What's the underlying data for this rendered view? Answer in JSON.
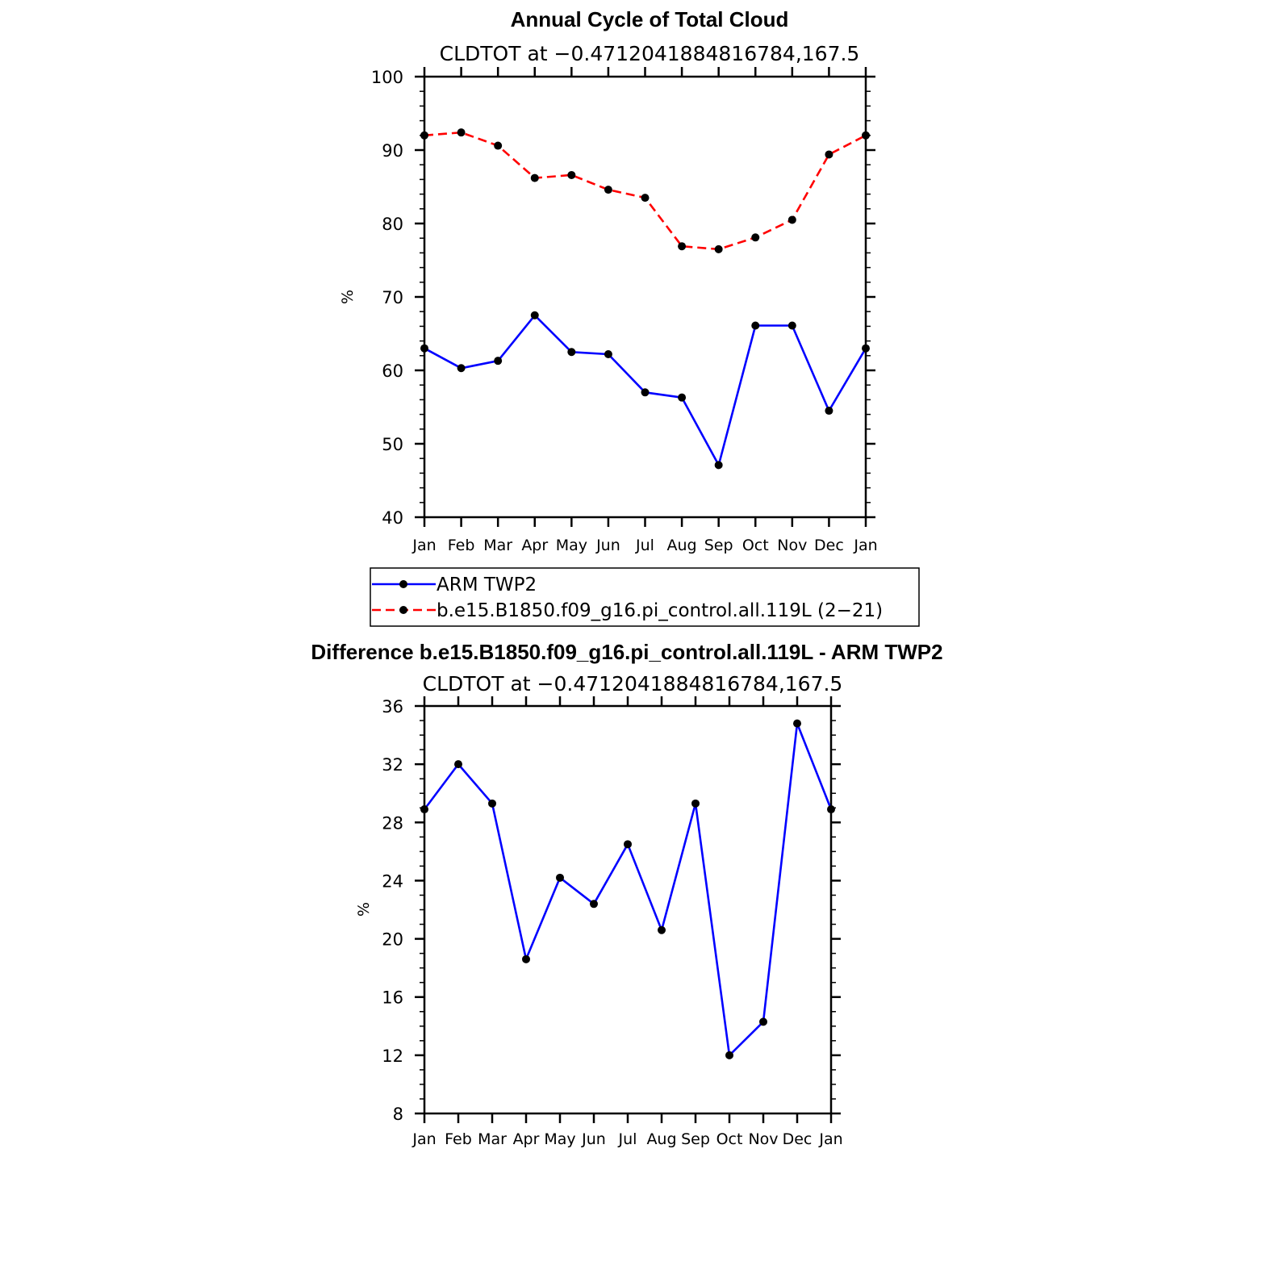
{
  "chart_data": [
    {
      "type": "line",
      "title": "Annual Cycle of Total Cloud",
      "subtitle": "CLDTOT at −0.4712041884816784,167.5",
      "xlabel": "",
      "ylabel": "%",
      "categories": [
        "Jan",
        "Feb",
        "Mar",
        "Apr",
        "May",
        "Jun",
        "Jul",
        "Aug",
        "Sep",
        "Oct",
        "Nov",
        "Dec",
        "Jan"
      ],
      "ylim": [
        40,
        100
      ],
      "yticks": [
        40,
        50,
        60,
        70,
        80,
        90,
        100
      ],
      "yticks_labels": [
        "40",
        "50",
        "60",
        "70",
        "80",
        "90",
        "100"
      ],
      "grid": false,
      "legend_position": "bottom",
      "series": [
        {
          "name": "ARM TWP2",
          "color": "#0000ff",
          "style": "solid",
          "values": [
            63.0,
            60.3,
            61.3,
            67.5,
            62.5,
            62.2,
            57.0,
            56.3,
            47.1,
            66.1,
            66.1,
            54.5,
            63.0
          ]
        },
        {
          "name": "b.e15.B1850.f09_g16.pi_control.all.119L (2−21)",
          "color": "#ff0000",
          "style": "dashed",
          "values": [
            92.0,
            92.4,
            90.6,
            86.2,
            86.6,
            84.6,
            83.5,
            76.9,
            76.5,
            78.1,
            80.5,
            89.4,
            92.0
          ]
        }
      ]
    },
    {
      "type": "line",
      "title": "Difference b.e15.B1850.f09_g16.pi_control.all.119L - ARM TWP2",
      "subtitle": "CLDTOT at −0.4712041884816784,167.5",
      "xlabel": "",
      "ylabel": "%",
      "categories": [
        "Jan",
        "Feb",
        "Mar",
        "Apr",
        "May",
        "Jun",
        "Jul",
        "Aug",
        "Sep",
        "Oct",
        "Nov",
        "Dec",
        "Jan"
      ],
      "ylim": [
        8,
        36
      ],
      "yticks": [
        8,
        12,
        16,
        20,
        24,
        28,
        32,
        36
      ],
      "yticks_labels": [
        "8",
        "12",
        "16",
        "20",
        "24",
        "28",
        "32",
        "36"
      ],
      "grid": false,
      "series": [
        {
          "name": "Difference",
          "color": "#0000ff",
          "style": "solid",
          "values": [
            28.9,
            32.0,
            29.3,
            18.6,
            24.2,
            22.4,
            26.5,
            20.6,
            29.3,
            12.0,
            14.3,
            34.8,
            28.9
          ]
        }
      ]
    }
  ]
}
